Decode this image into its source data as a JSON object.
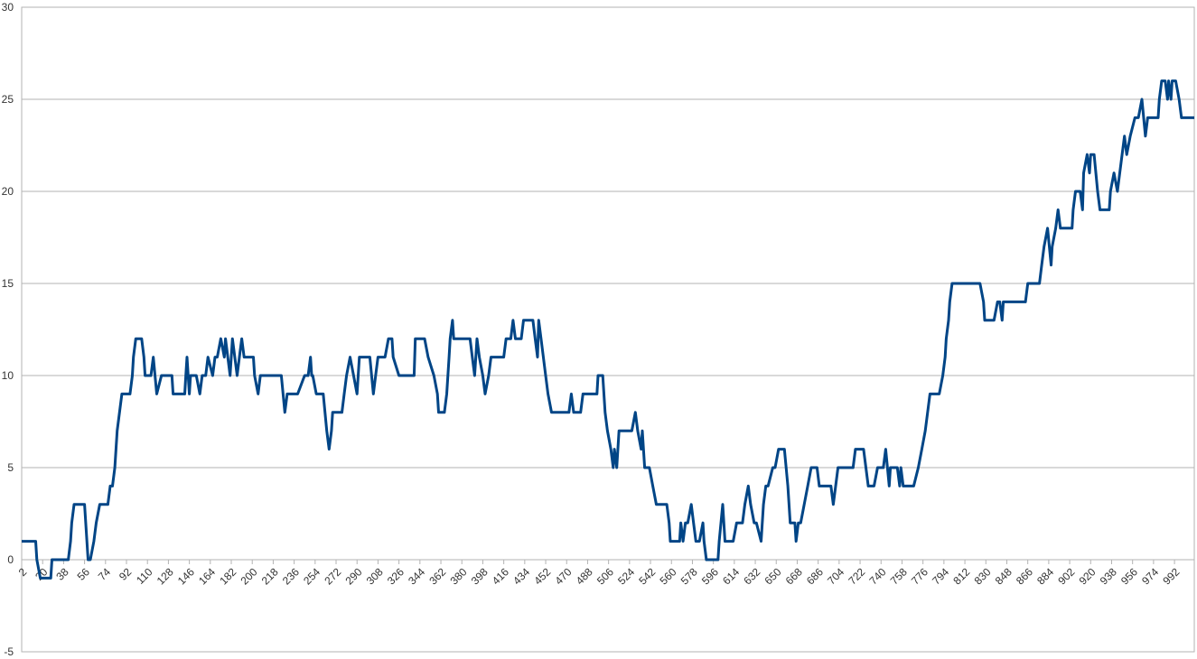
{
  "chart_data": {
    "type": "line",
    "color": "#004586",
    "grid": true,
    "xlim": [
      2,
      1009
    ],
    "ylim": [
      -5,
      30
    ],
    "yticks": [
      -5,
      0,
      5,
      10,
      15,
      20,
      25,
      30
    ],
    "xticks": [
      2,
      20,
      38,
      56,
      74,
      92,
      110,
      128,
      146,
      164,
      182,
      200,
      218,
      236,
      254,
      272,
      290,
      308,
      326,
      344,
      362,
      380,
      398,
      416,
      434,
      452,
      470,
      488,
      506,
      524,
      542,
      560,
      578,
      596,
      614,
      632,
      650,
      668,
      686,
      704,
      722,
      740,
      758,
      776,
      794,
      812,
      830,
      848,
      866,
      884,
      902,
      920,
      938,
      956,
      974,
      992
    ],
    "x": [
      2,
      14,
      15,
      18,
      27,
      28,
      42,
      44,
      45,
      47,
      56,
      59,
      61,
      64,
      66,
      69,
      76,
      78,
      80,
      82,
      83,
      84,
      86,
      88,
      95,
      97,
      98,
      100,
      105,
      107,
      108,
      113,
      115,
      118,
      122,
      131,
      132,
      142,
      143,
      144,
      146,
      147,
      152,
      155,
      157,
      160,
      162,
      166,
      168,
      170,
      173,
      176,
      177,
      181,
      183,
      185,
      187,
      189,
      191,
      193,
      195,
      201,
      202,
      205,
      207,
      212,
      213,
      225,
      228,
      230,
      239,
      245,
      248,
      250,
      251,
      252,
      255,
      261,
      264,
      266,
      268,
      269,
      277,
      279,
      281,
      284,
      287,
      290,
      292,
      294,
      301,
      304,
      306,
      308,
      314,
      317,
      320,
      321,
      326,
      328,
      339,
      340,
      348,
      351,
      356,
      359,
      360,
      365,
      367,
      369,
      370,
      372,
      373,
      375,
      387,
      389,
      391,
      393,
      395,
      398,
      400,
      403,
      405,
      408,
      416,
      418,
      422,
      424,
      426,
      431,
      433,
      441,
      443,
      445,
      446,
      448,
      452,
      454,
      457,
      472,
      474,
      476,
      482,
      484,
      496,
      497,
      501,
      503,
      505,
      508,
      510,
      511,
      513,
      515,
      519,
      526,
      529,
      531,
      534,
      535,
      537,
      541,
      544,
      547,
      550,
      556,
      558,
      559,
      567,
      568,
      570,
      572,
      574,
      577,
      579,
      581,
      584,
      587,
      588,
      590,
      592,
      600,
      601,
      604,
      606,
      608,
      613,
      616,
      621,
      623,
      626,
      628,
      631,
      633,
      637,
      639,
      641,
      643,
      647,
      649,
      652,
      657,
      660,
      662,
      666,
      667,
      669,
      671,
      674,
      677,
      680,
      685,
      687,
      697,
      699,
      701,
      703,
      705,
      716,
      718,
      721,
      725,
      727,
      729,
      734,
      737,
      742,
      744,
      747,
      748,
      754,
      756,
      757,
      759,
      768,
      772,
      775,
      778,
      780,
      782,
      790,
      793,
      795,
      796,
      798,
      799,
      801,
      802,
      825,
      828,
      829,
      837,
      840,
      842,
      844,
      845,
      864,
      866,
      876,
      878,
      880,
      883,
      886,
      887,
      890,
      892,
      894,
      896,
      904,
      905,
      907,
      911,
      913,
      914,
      917,
      919,
      920,
      923,
      926,
      928,
      931,
      936,
      937,
      940,
      943,
      945,
      947,
      949,
      951,
      954,
      958,
      961,
      964,
      967,
      969,
      978,
      979,
      981,
      984,
      986,
      987,
      989,
      990,
      993,
      996,
      998,
      1009
    ],
    "values": [
      1,
      1,
      0,
      -1,
      -1,
      0,
      0,
      1,
      2,
      3,
      3,
      0,
      0,
      1,
      2,
      3,
      3,
      4,
      4,
      5,
      6,
      7,
      8,
      9,
      9,
      10,
      11,
      12,
      12,
      11,
      10,
      10,
      11,
      9,
      10,
      10,
      9,
      9,
      10,
      11,
      9,
      10,
      10,
      9,
      10,
      10,
      11,
      10,
      11,
      11,
      12,
      11,
      12,
      10,
      12,
      11,
      10,
      11,
      12,
      11,
      11,
      11,
      10,
      9,
      10,
      10,
      10,
      10,
      8,
      9,
      9,
      10,
      10,
      11,
      10,
      10,
      9,
      9,
      7,
      6,
      7,
      8,
      8,
      9,
      10,
      11,
      10,
      9,
      11,
      11,
      11,
      9,
      10,
      11,
      11,
      12,
      12,
      11,
      10,
      10,
      10,
      12,
      12,
      11,
      10,
      9,
      8,
      8,
      9,
      11,
      12,
      13,
      12,
      12,
      12,
      11,
      10,
      12,
      11,
      10,
      9,
      10,
      11,
      11,
      11,
      12,
      12,
      13,
      12,
      12,
      13,
      13,
      12,
      11,
      13,
      12,
      10,
      9,
      8,
      8,
      9,
      8,
      8,
      9,
      9,
      10,
      10,
      8,
      7,
      6,
      5,
      6,
      5,
      7,
      7,
      7,
      8,
      7,
      6,
      7,
      5,
      5,
      4,
      3,
      3,
      3,
      2,
      1,
      1,
      2,
      1,
      2,
      2,
      3,
      2,
      1,
      1,
      2,
      1,
      0,
      0,
      0,
      1,
      3,
      1,
      1,
      1,
      2,
      2,
      3,
      4,
      3,
      2,
      2,
      1,
      3,
      4,
      4,
      5,
      5,
      6,
      6,
      4,
      2,
      2,
      1,
      2,
      2,
      3,
      4,
      5,
      5,
      4,
      4,
      3,
      4,
      5,
      5,
      5,
      6,
      6,
      6,
      5,
      4,
      4,
      5,
      5,
      6,
      4,
      5,
      5,
      4,
      5,
      4,
      4,
      5,
      6,
      7,
      8,
      9,
      9,
      10,
      11,
      12,
      13,
      14,
      15,
      15,
      15,
      14,
      13,
      13,
      14,
      14,
      13,
      14,
      14,
      15,
      15,
      16,
      17,
      18,
      16,
      17,
      18,
      19,
      18,
      18,
      18,
      19,
      20,
      20,
      19,
      21,
      22,
      21,
      22,
      22,
      20,
      19,
      19,
      19,
      20,
      21,
      20,
      21,
      22,
      23,
      22,
      23,
      24,
      24,
      25,
      23,
      24,
      24,
      25,
      26,
      26,
      25,
      26,
      25,
      26,
      26,
      25,
      24,
      24
    ]
  }
}
